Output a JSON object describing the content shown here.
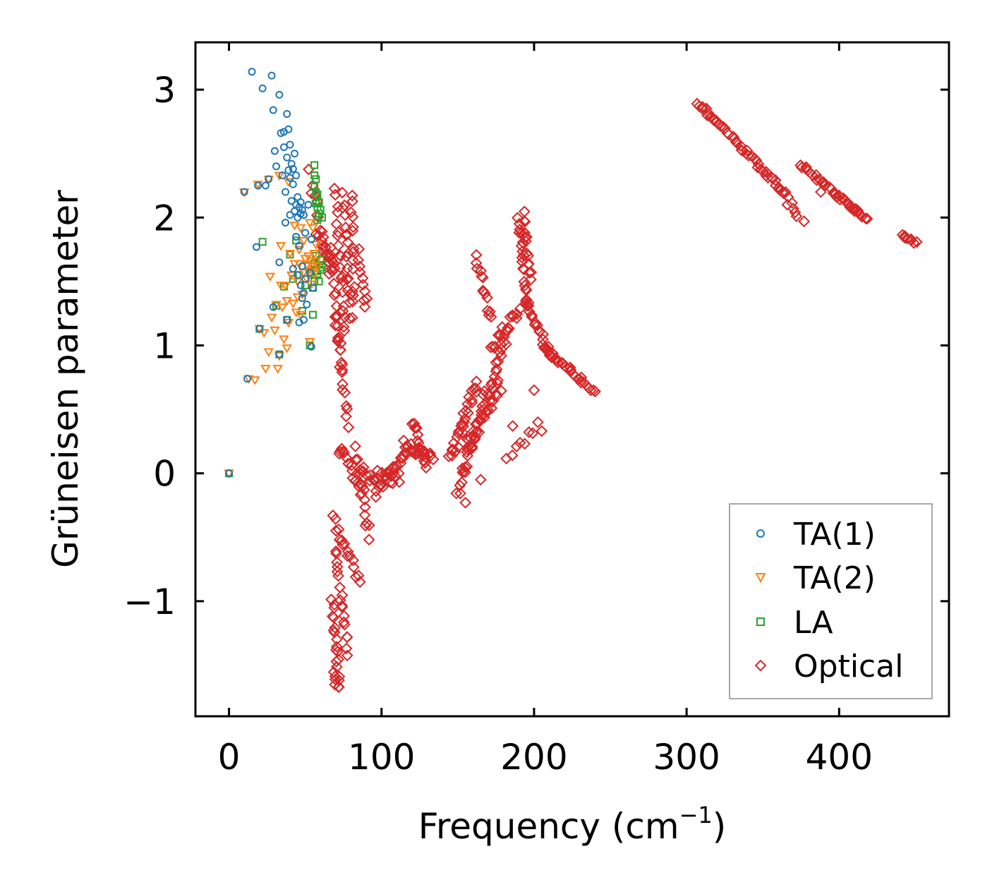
{
  "chart_data": {
    "type": "scatter",
    "title": "",
    "xlabel": "Frequency (cm",
    "xlabel_sup": "−1",
    "xlabel_tail": ")",
    "ylabel": "Grüneisen parameter",
    "xlim": [
      -22,
      472
    ],
    "ylim": [
      -1.9,
      3.37
    ],
    "xticks": [
      0,
      100,
      200,
      300,
      400
    ],
    "xtick_labels": [
      "0",
      "100",
      "200",
      "300",
      "400"
    ],
    "yticks": [
      -1,
      0,
      1,
      2,
      3
    ],
    "ytick_labels": [
      "−1",
      "0",
      "1",
      "2",
      "3"
    ],
    "legend_position": "lower-right",
    "grid": false,
    "series": [
      {
        "name": "TA(1)",
        "marker": "circle",
        "color": "#1f77b4",
        "points": [
          [
            0,
            0
          ],
          [
            10,
            2.2
          ],
          [
            12,
            0.74
          ],
          [
            15,
            3.14
          ],
          [
            18,
            1.77
          ],
          [
            19,
            2.25
          ],
          [
            20,
            1.13
          ],
          [
            22,
            3.01
          ],
          [
            24,
            2.25
          ],
          [
            26,
            2.3
          ],
          [
            28,
            3.11
          ],
          [
            29,
            1.3
          ],
          [
            29,
            2.84
          ],
          [
            30,
            2.52
          ],
          [
            31,
            2.4
          ],
          [
            33,
            1.65
          ],
          [
            33,
            2.96
          ],
          [
            33,
            0.93
          ],
          [
            34,
            2.66
          ],
          [
            35,
            2.33
          ],
          [
            36,
            2.55
          ],
          [
            36,
            2.67
          ],
          [
            37,
            2.2
          ],
          [
            37,
            1.96
          ],
          [
            38,
            2.81
          ],
          [
            38,
            1.2
          ],
          [
            38,
            2.47
          ],
          [
            39,
            2.69
          ],
          [
            39,
            2.37
          ],
          [
            40,
            2.57
          ],
          [
            40,
            2.02
          ],
          [
            40,
            2.31
          ],
          [
            41,
            2.42
          ],
          [
            41,
            2.13
          ],
          [
            42,
            2.38
          ],
          [
            42,
            1.6
          ],
          [
            42,
            2.26
          ],
          [
            43,
            2.5
          ],
          [
            43,
            2.05
          ],
          [
            44,
            2.33
          ],
          [
            44,
            2.1
          ],
          [
            44,
            1.85
          ],
          [
            45,
            2.0
          ],
          [
            45,
            2.16
          ],
          [
            45,
            1.55
          ],
          [
            46,
            2.08
          ],
          [
            46,
            1.78
          ],
          [
            46,
            1.18
          ],
          [
            47,
            2.12
          ],
          [
            47,
            1.47
          ],
          [
            47,
            2.03
          ],
          [
            48,
            2.06
          ],
          [
            48,
            1.62
          ],
          [
            48,
            1.37
          ],
          [
            49,
            2.02
          ],
          [
            49,
            1.41
          ],
          [
            49,
            1.2
          ],
          [
            50,
            1.88
          ],
          [
            50,
            1.52
          ],
          [
            51,
            1.32
          ],
          [
            52,
            2.1
          ],
          [
            53,
            1.57
          ],
          [
            54,
            0.99
          ],
          [
            54,
            1.83
          ],
          [
            55,
            1.45
          ]
        ]
      },
      {
        "name": "TA(2)",
        "marker": "triangle",
        "color": "#ff7f0e",
        "points": [
          [
            0,
            0
          ],
          [
            10,
            2.2
          ],
          [
            13,
            0.74
          ],
          [
            17,
            0.73
          ],
          [
            19,
            2.26
          ],
          [
            20,
            1.13
          ],
          [
            23,
            1.1
          ],
          [
            24,
            0.82
          ],
          [
            26,
            0.95
          ],
          [
            26,
            2.3
          ],
          [
            27,
            1.54
          ],
          [
            28,
            1.22
          ],
          [
            30,
            1.12
          ],
          [
            31,
            1.32
          ],
          [
            32,
            0.82
          ],
          [
            33,
            2.33
          ],
          [
            33,
            0.92
          ],
          [
            34,
            1.47
          ],
          [
            34,
            1.78
          ],
          [
            35,
            1.3
          ],
          [
            36,
            1.05
          ],
          [
            37,
            1.47
          ],
          [
            38,
            1.35
          ],
          [
            38,
            0.98
          ],
          [
            39,
            2.28
          ],
          [
            39,
            1.18
          ],
          [
            40,
            1.72
          ],
          [
            41,
            1.55
          ],
          [
            42,
            1.33
          ],
          [
            43,
            1.64
          ],
          [
            43,
            1.94
          ],
          [
            44,
            1.26
          ],
          [
            45,
            1.38
          ],
          [
            45,
            1.5
          ],
          [
            46,
            1.64
          ],
          [
            46,
            1.75
          ],
          [
            47,
            1.24
          ],
          [
            47,
            1.92
          ],
          [
            48,
            1.4
          ],
          [
            49,
            1.57
          ],
          [
            49,
            1.82
          ],
          [
            50,
            1.68
          ],
          [
            51,
            1.52
          ],
          [
            51,
            1.63
          ],
          [
            52,
            1.7
          ],
          [
            52,
            1.58
          ],
          [
            53,
            1.03
          ],
          [
            53,
            1.96
          ],
          [
            54,
            1.48
          ],
          [
            54,
            1.66
          ],
          [
            55,
            1.6
          ],
          [
            55,
            1.92
          ],
          [
            56,
            1.56
          ],
          [
            56,
            1.72
          ],
          [
            57,
            1.66
          ],
          [
            57,
            1.79
          ],
          [
            58,
            1.62
          ]
        ]
      },
      {
        "name": "LA",
        "marker": "square",
        "color": "#2ca02c",
        "points": [
          [
            0,
            0
          ],
          [
            20,
            1.13
          ],
          [
            22,
            1.81
          ],
          [
            31,
            1.31
          ],
          [
            33,
            0.93
          ],
          [
            36,
            1.46
          ],
          [
            38,
            1.2
          ],
          [
            40,
            1.71
          ],
          [
            42,
            1.52
          ],
          [
            44,
            1.82
          ],
          [
            46,
            1.55
          ],
          [
            48,
            1.27
          ],
          [
            50,
            1.47
          ],
          [
            52,
            1.62
          ],
          [
            53,
            1.0
          ],
          [
            54,
            1.56
          ],
          [
            55,
            1.24
          ],
          [
            55,
            1.45
          ],
          [
            56,
            2.41
          ],
          [
            56,
            2.33
          ],
          [
            56,
            2.24
          ],
          [
            56,
            1.64
          ],
          [
            56,
            1.5
          ],
          [
            57,
            2.3
          ],
          [
            57,
            2.2
          ],
          [
            57,
            2.11
          ],
          [
            57,
            1.58
          ],
          [
            57,
            1.7
          ],
          [
            58,
            2.18
          ],
          [
            58,
            2.08
          ],
          [
            58,
            1.98
          ],
          [
            58,
            1.56
          ],
          [
            59,
            2.12
          ],
          [
            59,
            2.03
          ],
          [
            59,
            1.63
          ],
          [
            59,
            1.5
          ],
          [
            60,
            2.06
          ],
          [
            60,
            1.67
          ],
          [
            60,
            1.59
          ],
          [
            61,
            2.0
          ],
          [
            61,
            1.61
          ]
        ]
      },
      {
        "name": "Optical",
        "marker": "diamond",
        "color": "#d62728",
        "segments": [
          {
            "from": [
              53,
              2.35
            ],
            "to": [
              66,
              1.55
            ],
            "count": 14,
            "spread": 0.04
          },
          {
            "from": [
              57,
              1.9
            ],
            "to": [
              70,
              1.6
            ],
            "count": 14,
            "spread": 0.05
          },
          {
            "from": [
              70,
              2.22
            ],
            "to": [
              76,
              1.1
            ],
            "count": 20,
            "spread": 0.05
          },
          {
            "from": [
              75,
              2.2
            ],
            "to": [
              80,
              1.2
            ],
            "count": 18,
            "spread": 0.05
          },
          {
            "from": [
              80,
              2.2
            ],
            "to": [
              82,
              1.3
            ],
            "count": 14,
            "spread": 0.05
          },
          {
            "from": [
              85,
              1.75
            ],
            "to": [
              90,
              1.28
            ],
            "count": 10,
            "spread": 0.04
          },
          {
            "from": [
              66,
              1.75
            ],
            "to": [
              74,
              0.82
            ],
            "count": 16,
            "spread": 0.05
          },
          {
            "from": [
              70,
              1.2
            ],
            "to": [
              78,
              0.4
            ],
            "count": 16,
            "spread": 0.05
          },
          {
            "from": [
              72,
              0.2
            ],
            "to": [
              88,
              -0.12
            ],
            "count": 16,
            "spread": 0.05
          },
          {
            "from": [
              83,
              0.18
            ],
            "to": [
              92,
              -0.5
            ],
            "count": 16,
            "spread": 0.05
          },
          {
            "from": [
              86,
              0.0
            ],
            "to": [
              112,
              -0.05
            ],
            "count": 20,
            "spread": 0.05
          },
          {
            "from": [
              96,
              -0.15
            ],
            "to": [
              120,
              0.22
            ],
            "count": 24,
            "spread": 0.04
          },
          {
            "from": [
              115,
              0.22
            ],
            "to": [
              133,
              0.12
            ],
            "count": 18,
            "spread": 0.04
          },
          {
            "from": [
              120,
              0.42
            ],
            "to": [
              130,
              0.05
            ],
            "count": 14,
            "spread": 0.04
          },
          {
            "from": [
              69,
              -0.35
            ],
            "to": [
              85,
              -0.85
            ],
            "count": 16,
            "spread": 0.04
          },
          {
            "from": [
              70,
              -0.6
            ],
            "to": [
              78,
              -1.4
            ],
            "count": 18,
            "spread": 0.04
          },
          {
            "from": [
              68,
              -1.0
            ],
            "to": [
              72,
              -1.65
            ],
            "count": 18,
            "spread": 0.03
          },
          {
            "from": [
              68,
              -1.55
            ],
            "to": [
              71,
              -1.68
            ],
            "count": 5,
            "spread": 0.01
          },
          {
            "from": [
              145,
              0.1
            ],
            "to": [
              162,
              0.7
            ],
            "count": 28,
            "spread": 0.06
          },
          {
            "from": [
              150,
              -0.15
            ],
            "to": [
              168,
              0.6
            ],
            "count": 28,
            "spread": 0.06
          },
          {
            "from": [
              155,
              0.2
            ],
            "to": [
              178,
              0.7
            ],
            "count": 26,
            "spread": 0.06
          },
          {
            "from": [
              162,
              1.68
            ],
            "to": [
              172,
              1.2
            ],
            "count": 14,
            "spread": 0.04
          },
          {
            "from": [
              168,
              0.5
            ],
            "to": [
              182,
              1.1
            ],
            "count": 20,
            "spread": 0.06
          },
          {
            "from": [
              172,
              0.95
            ],
            "to": [
              190,
              1.3
            ],
            "count": 18,
            "spread": 0.05
          },
          {
            "from": [
              190,
              2.0
            ],
            "to": [
              196,
              1.3
            ],
            "count": 20,
            "spread": 0.04
          },
          {
            "from": [
              193,
              2.03
            ],
            "to": [
              198,
              1.5
            ],
            "count": 14,
            "spread": 0.03
          },
          {
            "from": [
              194,
              1.35
            ],
            "to": [
              212,
              0.9
            ],
            "count": 18,
            "spread": 0.03
          },
          {
            "from": [
              205,
              1.0
            ],
            "to": [
              240,
              0.64
            ],
            "count": 26,
            "spread": 0.02
          },
          {
            "from": [
              182,
              0.1
            ],
            "to": [
              202,
              0.35
            ],
            "count": 8,
            "spread": 0.05
          },
          {
            "from": [
              307,
              2.9
            ],
            "to": [
              364,
              2.2
            ],
            "count": 46,
            "spread": 0.015
          },
          {
            "from": [
              365,
              2.2
            ],
            "to": [
              372,
              2.0
            ],
            "count": 5,
            "spread": 0.015
          },
          {
            "from": [
              375,
              2.41
            ],
            "to": [
              418,
              1.98
            ],
            "count": 34,
            "spread": 0.015
          },
          {
            "from": [
              441,
              1.87
            ],
            "to": [
              450,
              1.8
            ],
            "count": 8,
            "spread": 0.01
          }
        ],
        "points": [
          [
            377,
            1.97
          ],
          [
            366,
            2.1
          ],
          [
            370,
            2.07
          ],
          [
            388,
            2.2
          ],
          [
            410,
            2.05
          ],
          [
            200,
            0.65
          ],
          [
            186,
            0.37
          ],
          [
            205,
            0.33
          ],
          [
            165,
            -0.05
          ],
          [
            155,
            -0.23
          ]
        ]
      }
    ]
  }
}
